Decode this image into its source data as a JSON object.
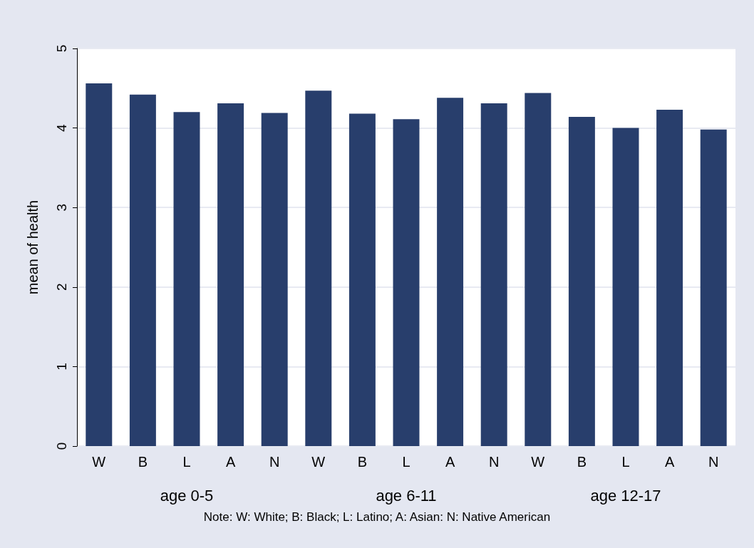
{
  "chart_data": [
    {
      "type": "bar",
      "xlabel": "age 0-5",
      "ylabel": "mean of health",
      "categories": [
        "W",
        "B",
        "L",
        "A",
        "N"
      ],
      "values": [
        4.56,
        4.42,
        4.2,
        4.31,
        4.19
      ],
      "color": "#283e6c",
      "ylim": [
        0,
        5
      ],
      "yticks": [
        0,
        1,
        2,
        3,
        4,
        5
      ],
      "grid": "y"
    },
    {
      "type": "bar",
      "xlabel": "age 6-11",
      "categories": [
        "W",
        "B",
        "L",
        "A",
        "N"
      ],
      "values": [
        4.47,
        4.18,
        4.11,
        4.38,
        4.31
      ],
      "color": "#283e6c",
      "ylim": [
        0,
        5
      ],
      "yticks": [
        0,
        1,
        2,
        3,
        4,
        5
      ],
      "grid": "y",
      "tick_labels": "x",
      "annotations": [
        "Note: W: White; B: Black; L: Latino; A: Asian: N: Native American"
      ]
    },
    {
      "type": "bar",
      "xlabel": "age 12-17",
      "categories": [
        "W",
        "B",
        "L",
        "A",
        "N"
      ],
      "values": [
        4.44,
        4.14,
        4.0,
        4.23,
        3.98
      ],
      "color": "#283e6c",
      "ylim": [
        0,
        5
      ],
      "yticks": [
        0,
        1,
        2,
        3,
        4,
        5
      ],
      "grid": "y",
      "tick_labels": "x"
    }
  ]
}
